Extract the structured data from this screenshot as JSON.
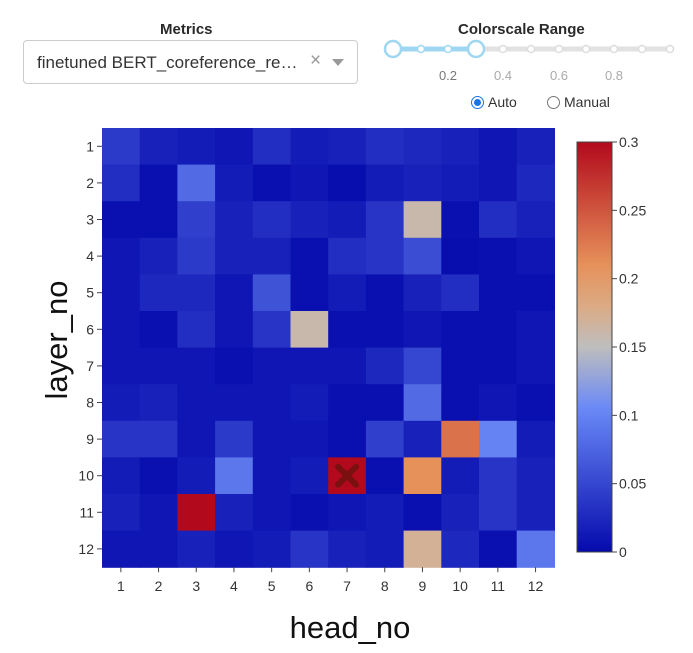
{
  "controls": {
    "metrics_title": "Metrics",
    "metrics_value": "finetuned BERT_coreference_resolution",
    "clear_icon": "×",
    "range_title": "Colorscale Range",
    "slider_ticks": [
      "0.2",
      "0.4",
      "0.6",
      "0.8"
    ],
    "slider_range": [
      0,
      0.3
    ],
    "radio_auto": "Auto",
    "radio_manual": "Manual",
    "radio_selected": "Auto"
  },
  "chart_data": {
    "type": "heatmap",
    "xlabel": "head_no",
    "ylabel": "layer_no",
    "x": [
      "1",
      "2",
      "3",
      "4",
      "5",
      "6",
      "7",
      "8",
      "9",
      "10",
      "11",
      "12"
    ],
    "y": [
      "1",
      "2",
      "3",
      "4",
      "5",
      "6",
      "7",
      "8",
      "9",
      "10",
      "11",
      "12"
    ],
    "zmin": 0,
    "zmax": 0.3,
    "colorscale": "RdBu_r",
    "colorbar_ticks": [
      "0",
      "0.05",
      "0.1",
      "0.15",
      "0.2",
      "0.25",
      "0.3"
    ],
    "z": [
      [
        0.04,
        0.02,
        0.015,
        0.01,
        0.03,
        0.015,
        0.02,
        0.03,
        0.025,
        0.02,
        0.01,
        0.02
      ],
      [
        0.03,
        0.005,
        0.08,
        0.015,
        0.005,
        0.01,
        0.003,
        0.015,
        0.02,
        0.015,
        0.01,
        0.025
      ],
      [
        0.005,
        0.005,
        0.045,
        0.02,
        0.03,
        0.02,
        0.015,
        0.035,
        0.16,
        0.005,
        0.03,
        0.02
      ],
      [
        0.01,
        0.02,
        0.04,
        0.02,
        0.02,
        0.005,
        0.03,
        0.035,
        0.055,
        0.003,
        0.005,
        0.01
      ],
      [
        0.01,
        0.025,
        0.025,
        0.01,
        0.06,
        0.005,
        0.015,
        0.005,
        0.02,
        0.03,
        0.005,
        0.005
      ],
      [
        0.01,
        0.005,
        0.03,
        0.01,
        0.035,
        0.16,
        0.005,
        0.005,
        0.01,
        0.005,
        0.005,
        0.01
      ],
      [
        0.01,
        0.01,
        0.01,
        0.005,
        0.01,
        0.01,
        0.01,
        0.025,
        0.05,
        0.005,
        0.005,
        0.01
      ],
      [
        0.015,
        0.02,
        0.01,
        0.01,
        0.01,
        0.015,
        0.005,
        0.005,
        0.08,
        0.005,
        0.01,
        0.005
      ],
      [
        0.035,
        0.035,
        0.01,
        0.04,
        0.01,
        0.01,
        0.005,
        0.045,
        0.02,
        0.23,
        0.1,
        0.015
      ],
      [
        0.015,
        0.005,
        0.015,
        0.09,
        0.01,
        0.015,
        0.3,
        0.005,
        0.21,
        0.015,
        0.035,
        0.02
      ],
      [
        0.02,
        0.01,
        0.3,
        0.02,
        0.01,
        0.005,
        0.01,
        0.015,
        0.005,
        0.02,
        0.035,
        0.02
      ],
      [
        0.01,
        0.01,
        0.02,
        0.01,
        0.015,
        0.035,
        0.02,
        0.015,
        0.17,
        0.025,
        0.005,
        0.09
      ]
    ],
    "marker": {
      "symbol": "x",
      "x": "7",
      "y": "10",
      "color": "#7a1010"
    }
  }
}
